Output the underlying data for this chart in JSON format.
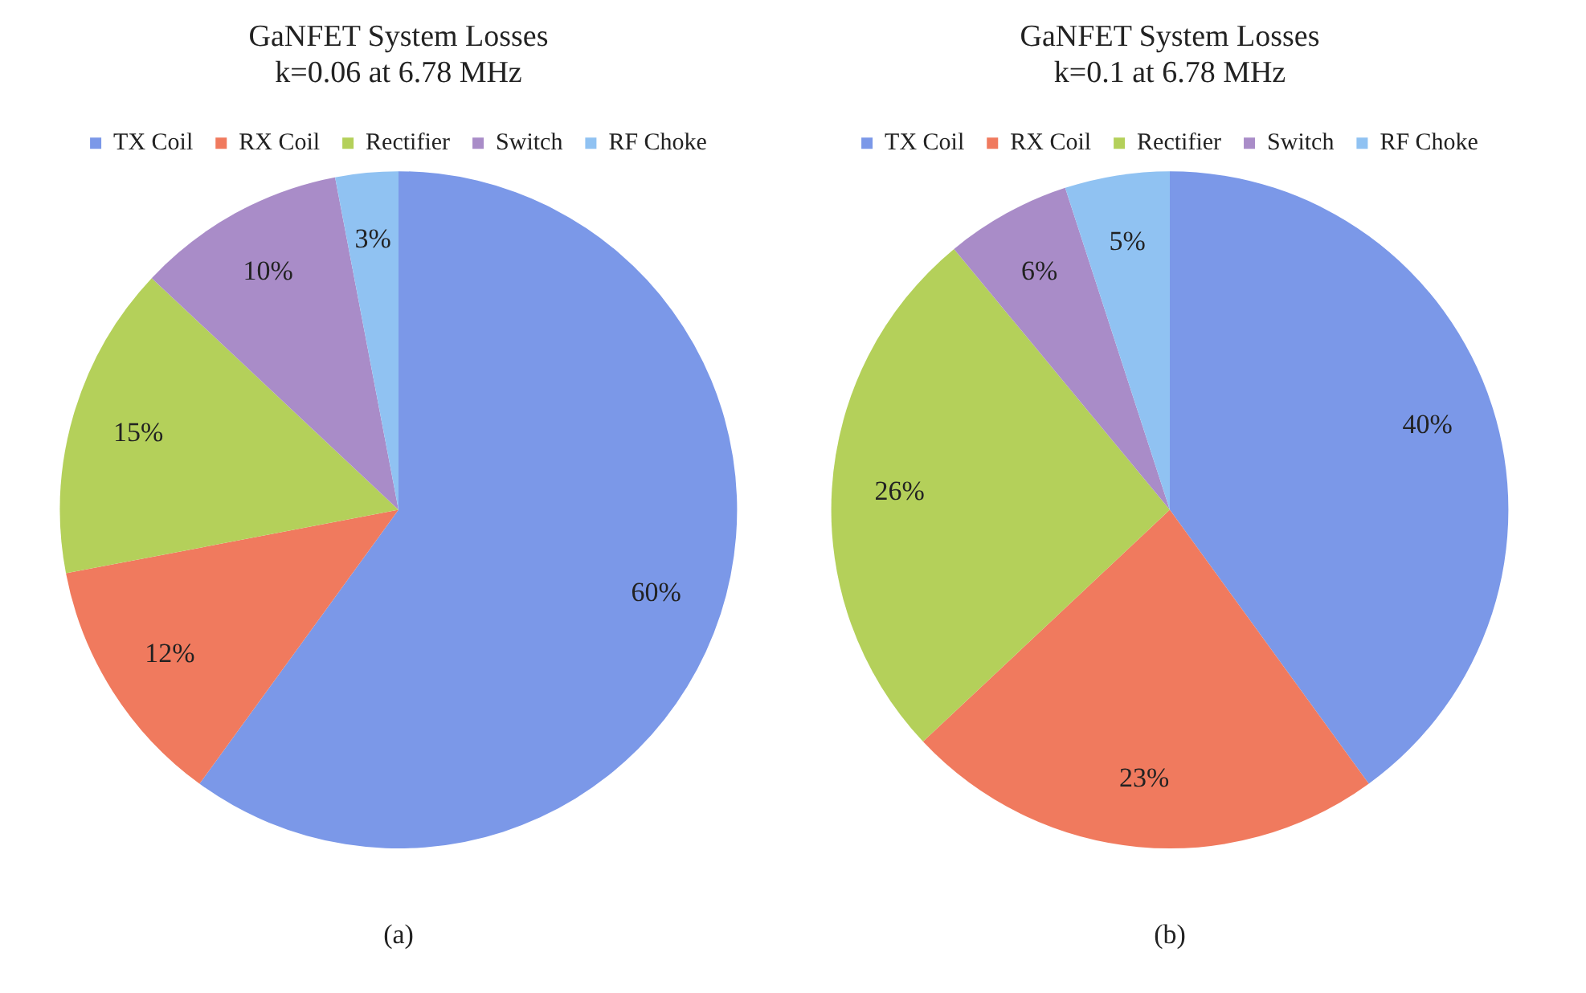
{
  "chart_data": [
    {
      "type": "pie",
      "title": "GaNFET System Losses",
      "subtitle": "k=0.06 at 6.78 MHz",
      "categories": [
        "TX Coil",
        "RX Coil",
        "Rectifier",
        "Switch",
        "RF Choke"
      ],
      "values": [
        60,
        12,
        15,
        10,
        3
      ],
      "value_labels": [
        "60%",
        "12%",
        "15%",
        "10%",
        "3%"
      ],
      "colors": [
        "#7b98e8",
        "#f07a5e",
        "#b4d05a",
        "#a98cc8",
        "#90c2f2"
      ],
      "legend": "top",
      "annotations": [
        "(a)"
      ]
    },
    {
      "type": "pie",
      "title": "GaNFET System Losses",
      "subtitle": "k=0.1 at 6.78 MHz",
      "categories": [
        "TX Coil",
        "RX Coil",
        "Rectifier",
        "Switch",
        "RF Choke"
      ],
      "values": [
        40,
        23,
        26,
        6,
        5
      ],
      "value_labels": [
        "40%",
        "23%",
        "26%",
        "6%",
        "5%"
      ],
      "colors": [
        "#7b98e8",
        "#f07a5e",
        "#b4d05a",
        "#a98cc8",
        "#90c2f2"
      ],
      "legend": "top",
      "annotations": [
        "(b)"
      ]
    }
  ]
}
